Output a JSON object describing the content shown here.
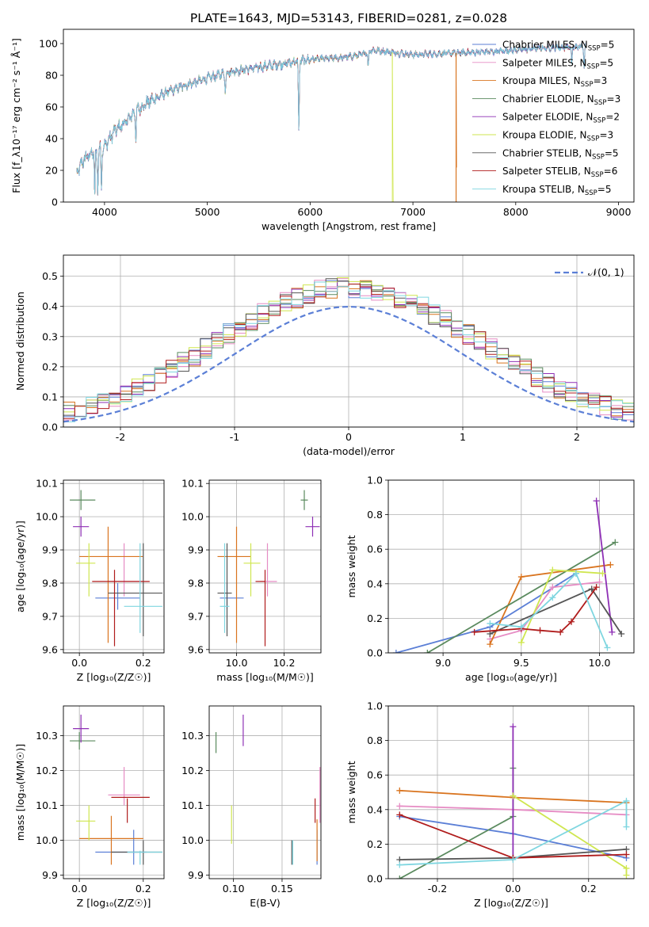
{
  "title": "PLATE=1643, MJD=53143, FIBERID=0281, z=0.028",
  "colors": [
    "#5b7fd6",
    "#e68cc4",
    "#d9741f",
    "#5a8a5e",
    "#8e2fb5",
    "#cfe64f",
    "#555555",
    "#b01c1c",
    "#7fd6e0"
  ],
  "chart_data": [
    {
      "type": "line",
      "name": "spectrum",
      "xlabel": "wavelength [Angstrom, rest frame]",
      "ylabel": "Flux [f_λ10⁻¹⁷ erg cm⁻² s⁻¹ Å⁻¹]",
      "xlim": [
        3600,
        9150
      ],
      "ylim": [
        0,
        109
      ],
      "xticks": [
        4000,
        5000,
        6000,
        7000,
        8000,
        9000
      ],
      "yticks": [
        0,
        20,
        40,
        60,
        80,
        100
      ],
      "grid": false,
      "legend_position": "top-right",
      "continuum": {
        "x": [
          3730,
          3800,
          3900,
          4000,
          4100,
          4200,
          4300,
          4400,
          4600,
          4800,
          5000,
          5200,
          5500,
          5800,
          6000,
          6300,
          6500,
          6600,
          7000,
          7400,
          7800,
          8200,
          8600,
          8680
        ],
        "y": [
          18,
          27,
          32,
          35,
          45,
          50,
          57,
          62,
          69,
          74,
          78,
          82,
          85,
          88,
          90,
          91,
          93,
          96,
          93,
          94,
          95,
          97,
          98,
          98
        ]
      },
      "absorption": [
        {
          "x": 3905,
          "depth": 30
        },
        {
          "x": 3935,
          "depth": 26
        },
        {
          "x": 3970,
          "depth": 24
        },
        {
          "x": 4305,
          "depth": 16
        },
        {
          "x": 5175,
          "depth": 12
        },
        {
          "x": 5890,
          "depth": 45
        },
        {
          "x": 6565,
          "depth": 10
        },
        {
          "x": 8545,
          "depth": 12
        },
        {
          "x": 8665,
          "depth": 12
        }
      ],
      "dropouts": [
        {
          "series": 5,
          "x": 6800
        },
        {
          "series": 2,
          "x": 7420
        }
      ],
      "series": [
        {
          "name": "Chabrier MILES, N",
          "n_ssp": "5"
        },
        {
          "name": "Salpeter MILES, N",
          "n_ssp": "5"
        },
        {
          "name": "Kroupa MILES, N",
          "n_ssp": "3"
        },
        {
          "name": "Chabrier ELODIE, N",
          "n_ssp": "3"
        },
        {
          "name": "Salpeter ELODIE, N",
          "n_ssp": "2"
        },
        {
          "name": "Kroupa ELODIE, N",
          "n_ssp": "3"
        },
        {
          "name": "Chabrier STELIB, N",
          "n_ssp": "5"
        },
        {
          "name": "Salpeter STELIB, N",
          "n_ssp": "6"
        },
        {
          "name": "Kroupa STELIB, N",
          "n_ssp": "5"
        }
      ],
      "legend_sub": "SSP",
      "legend_eq": "="
    },
    {
      "type": "bar",
      "name": "residuals",
      "xlabel": "(data-model)/error",
      "ylabel": "Normed distribution",
      "xlim": [
        -2.5,
        2.5
      ],
      "ylim": [
        0,
        0.57
      ],
      "xticks": [
        -2,
        -1,
        0,
        1,
        2
      ],
      "yticks": [
        0.0,
        0.1,
        0.2,
        0.3,
        0.4,
        0.5
      ],
      "grid": true,
      "bin_edges_start": -2.5,
      "bin_width": 0.1,
      "nbins": 50,
      "gaussian_label": "𝒩(0, 1)",
      "legend_position": "top-right"
    },
    {
      "type": "scatter",
      "name": "age-vs-Z",
      "xlabel": "Z [log₁₀(Z/Z☉)]",
      "ylabel": "age  [log₁₀(age/yr)]",
      "xlim": [
        -0.05,
        0.265
      ],
      "ylim": [
        9.59,
        10.11
      ],
      "xticks": [
        0.0,
        0.2
      ],
      "yticks": [
        9.6,
        9.7,
        9.8,
        9.9,
        10.0,
        10.1
      ],
      "grid": true,
      "points": [
        {
          "s": 0,
          "x": 0.12,
          "y": 9.755,
          "xl": 0.05,
          "xh": 0.19,
          "yl": 9.72,
          "yh": 9.8
        },
        {
          "s": 1,
          "x": 0.14,
          "y": 9.805,
          "xl": 0.09,
          "xh": 0.2,
          "yl": 9.76,
          "yh": 9.92
        },
        {
          "s": 2,
          "x": 0.09,
          "y": 9.88,
          "xl": 0.0,
          "xh": 0.2,
          "yl": 9.62,
          "yh": 9.97
        },
        {
          "s": 3,
          "x": 0.005,
          "y": 10.05,
          "xl": -0.03,
          "xh": 0.05,
          "yl": 10.02,
          "yh": 10.08
        },
        {
          "s": 4,
          "x": 0.005,
          "y": 9.97,
          "xl": -0.02,
          "xh": 0.03,
          "yl": 9.94,
          "yh": 10.0
        },
        {
          "s": 5,
          "x": 0.03,
          "y": 9.86,
          "xl": -0.01,
          "xh": 0.05,
          "yl": 9.76,
          "yh": 9.92
        },
        {
          "s": 6,
          "x": 0.2,
          "y": 9.77,
          "xl": 0.09,
          "xh": 0.26,
          "yl": 9.64,
          "yh": 9.92
        },
        {
          "s": 7,
          "x": 0.11,
          "y": 9.805,
          "xl": 0.04,
          "xh": 0.22,
          "yl": 9.61,
          "yh": 9.84
        },
        {
          "s": 8,
          "x": 0.19,
          "y": 9.73,
          "xl": 0.14,
          "xh": 0.26,
          "yl": 9.65,
          "yh": 9.92
        }
      ]
    },
    {
      "type": "scatter",
      "name": "age-vs-mass",
      "xlabel": "mass [log₁₀(M/M☉)]",
      "ylabel": "",
      "xlim": [
        9.885,
        10.355
      ],
      "ylim": [
        9.59,
        10.11
      ],
      "xticks": [
        10.0,
        10.2
      ],
      "yticks": [
        9.6,
        9.7,
        9.8,
        9.9,
        10.0,
        10.1
      ],
      "grid": true,
      "points": [
        {
          "s": 0,
          "x": 9.96,
          "y": 9.755,
          "xl": 9.93,
          "xh": 10.03,
          "yl": 9.72,
          "yh": 9.8
        },
        {
          "s": 1,
          "x": 10.13,
          "y": 9.805,
          "xl": 10.1,
          "xh": 10.17,
          "yl": 9.76,
          "yh": 9.92
        },
        {
          "s": 2,
          "x": 10.0,
          "y": 9.88,
          "xl": 9.92,
          "xh": 10.06,
          "yl": 9.62,
          "yh": 9.97
        },
        {
          "s": 3,
          "x": 10.285,
          "y": 10.05,
          "xl": 10.27,
          "xh": 10.3,
          "yl": 10.02,
          "yh": 10.08
        },
        {
          "s": 4,
          "x": 10.32,
          "y": 9.97,
          "xl": 10.29,
          "xh": 10.35,
          "yl": 9.94,
          "yh": 10.0
        },
        {
          "s": 5,
          "x": 10.06,
          "y": 9.86,
          "xl": 10.03,
          "xh": 10.1,
          "yl": 9.76,
          "yh": 9.92
        },
        {
          "s": 6,
          "x": 9.96,
          "y": 9.77,
          "xl": 9.92,
          "xh": 9.98,
          "yl": 9.64,
          "yh": 9.92
        },
        {
          "s": 7,
          "x": 10.12,
          "y": 9.805,
          "xl": 10.08,
          "xh": 10.12,
          "yl": 9.61,
          "yh": 9.84
        },
        {
          "s": 8,
          "x": 9.95,
          "y": 9.73,
          "xl": 9.93,
          "xh": 9.97,
          "yl": 9.65,
          "yh": 9.92
        }
      ]
    },
    {
      "type": "line",
      "name": "massweight-vs-age",
      "xlabel": "age  [log₁₀(age/yr)]",
      "ylabel": "mass weight",
      "xlim": [
        8.65,
        10.22
      ],
      "ylim": [
        0,
        1.0
      ],
      "xticks": [
        9.0,
        9.5,
        10.0
      ],
      "yticks": [
        0.0,
        0.2,
        0.4,
        0.6,
        0.8,
        1.0
      ],
      "grid": true,
      "series": [
        {
          "s": 0,
          "x": [
            8.7,
            9.3,
            9.85
          ],
          "y": [
            0.0,
            0.15,
            0.46
          ]
        },
        {
          "s": 1,
          "x": [
            9.3,
            9.5,
            9.7,
            10.0
          ],
          "y": [
            0.08,
            0.13,
            0.38,
            0.41
          ]
        },
        {
          "s": 2,
          "x": [
            9.3,
            9.5,
            10.07
          ],
          "y": [
            0.05,
            0.44,
            0.51
          ]
        },
        {
          "s": 3,
          "x": [
            8.9,
            10.1
          ],
          "y": [
            0.0,
            0.64
          ]
        },
        {
          "s": 4,
          "x": [
            9.98,
            10.08
          ],
          "y": [
            0.88,
            0.12
          ]
        },
        {
          "s": 5,
          "x": [
            9.5,
            9.7,
            10.02
          ],
          "y": [
            0.06,
            0.48,
            0.46
          ]
        },
        {
          "s": 6,
          "x": [
            9.3,
            9.95,
            10.14
          ],
          "y": [
            0.11,
            0.37,
            0.11
          ]
        },
        {
          "s": 7,
          "x": [
            9.2,
            9.5,
            9.62,
            9.75,
            9.82,
            9.98
          ],
          "y": [
            0.12,
            0.14,
            0.13,
            0.12,
            0.18,
            0.38
          ]
        },
        {
          "s": 8,
          "x": [
            9.3,
            9.5,
            9.7,
            9.85,
            10.05
          ],
          "y": [
            0.17,
            0.15,
            0.32,
            0.46,
            0.03
          ]
        }
      ]
    },
    {
      "type": "scatter",
      "name": "mass-vs-Z",
      "xlabel": "Z [log₁₀(Z/Z☉)]",
      "ylabel": "mass [log₁₀(M/M☉)]",
      "xlim": [
        -0.05,
        0.265
      ],
      "ylim": [
        9.89,
        10.385
      ],
      "xticks": [
        0.0,
        0.2
      ],
      "yticks": [
        9.9,
        10.0,
        10.1,
        10.2,
        10.3
      ],
      "grid": true,
      "points": [
        {
          "s": 0,
          "x": 0.17,
          "y": 9.966,
          "xl": 0.05,
          "xh": 0.21,
          "yl": 9.93,
          "yh": 10.03
        },
        {
          "s": 1,
          "x": 0.14,
          "y": 10.13,
          "xl": 0.09,
          "xh": 0.19,
          "yl": 10.1,
          "yh": 10.21
        },
        {
          "s": 2,
          "x": 0.1,
          "y": 10.005,
          "xl": 0.0,
          "xh": 0.2,
          "yl": 9.93,
          "yh": 10.07
        },
        {
          "s": 3,
          "x": 0.0,
          "y": 10.285,
          "xl": -0.03,
          "xh": 0.05,
          "yl": 10.26,
          "yh": 10.31
        },
        {
          "s": 4,
          "x": 0.005,
          "y": 10.32,
          "xl": -0.02,
          "xh": 0.03,
          "yl": 10.28,
          "yh": 10.36
        },
        {
          "s": 5,
          "x": 0.03,
          "y": 10.055,
          "xl": -0.01,
          "xh": 0.05,
          "yl": 10.0,
          "yh": 10.1
        },
        {
          "s": 6,
          "x": 0.2,
          "y": 9.966,
          "xl": 0.1,
          "xh": 0.26,
          "yl": 9.93,
          "yh": 10.0
        },
        {
          "s": 7,
          "x": 0.15,
          "y": 10.123,
          "xl": 0.1,
          "xh": 0.22,
          "yl": 10.05,
          "yh": 10.12
        },
        {
          "s": 8,
          "x": 0.19,
          "y": 9.966,
          "xl": 0.15,
          "xh": 0.26,
          "yl": 9.93,
          "yh": 9.97
        }
      ]
    },
    {
      "type": "scatter",
      "name": "mass-vs-EBV",
      "xlabel": "E(B-V)",
      "ylabel": "",
      "xlim": [
        0.075,
        0.19
      ],
      "ylim": [
        9.89,
        10.385
      ],
      "xticks": [
        0.1,
        0.15
      ],
      "yticks": [
        9.9,
        10.0,
        10.1,
        10.2,
        10.3
      ],
      "grid": true,
      "points": [
        {
          "s": 0,
          "x": 0.186,
          "y": 9.966,
          "yl": 9.93,
          "yh": 10.03
        },
        {
          "s": 1,
          "x": 0.189,
          "y": 10.13,
          "yl": 10.05,
          "yh": 10.21
        },
        {
          "s": 2,
          "x": 0.186,
          "y": 10.0,
          "yl": 9.94,
          "yh": 10.06
        },
        {
          "s": 3,
          "x": 0.082,
          "y": 10.285,
          "yl": 10.25,
          "yh": 10.31
        },
        {
          "s": 4,
          "x": 0.11,
          "y": 10.32,
          "yl": 10.27,
          "yh": 10.36
        },
        {
          "s": 5,
          "x": 0.098,
          "y": 10.055,
          "yl": 9.99,
          "yh": 10.1
        },
        {
          "s": 6,
          "x": 0.16,
          "y": 9.966,
          "yl": 9.93,
          "yh": 10.0
        },
        {
          "s": 7,
          "x": 0.184,
          "y": 10.085,
          "yl": 10.05,
          "yh": 10.12
        },
        {
          "s": 8,
          "x": 0.161,
          "y": 9.966,
          "yl": 9.93,
          "yh": 10.0
        }
      ]
    },
    {
      "type": "line",
      "name": "massweight-vs-Z",
      "xlabel": "Z [log₁₀(Z/Z☉)]",
      "ylabel": "mass weight",
      "xlim": [
        -0.33,
        0.32
      ],
      "ylim": [
        0,
        1.0
      ],
      "xticks": [
        -0.2,
        0.0,
        0.2
      ],
      "yticks": [
        0.0,
        0.2,
        0.4,
        0.6,
        0.8,
        1.0
      ],
      "grid": true,
      "series": [
        {
          "s": 0,
          "x": [
            -0.3,
            0.0,
            0.3
          ],
          "y": [
            0.36,
            0.26,
            0.12
          ]
        },
        {
          "s": 1,
          "x": [
            -0.3,
            0.0,
            0.3
          ],
          "y": [
            0.42,
            0.4,
            0.37
          ]
        },
        {
          "s": 2,
          "x": [
            -0.3,
            0.0,
            0.3
          ],
          "y": [
            0.51,
            0.47,
            0.44
          ]
        },
        {
          "s": 3,
          "x": [
            -0.3,
            0.0,
            0.0
          ],
          "y": [
            0.0,
            0.36,
            0.64
          ]
        },
        {
          "s": 4,
          "x": [
            0.0,
            0.0
          ],
          "y": [
            0.12,
            0.88
          ]
        },
        {
          "s": 5,
          "x": [
            0.0,
            0.3,
            0.3
          ],
          "y": [
            0.48,
            0.06,
            0.02
          ]
        },
        {
          "s": 6,
          "x": [
            -0.3,
            0.0,
            0.3
          ],
          "y": [
            0.11,
            0.12,
            0.17
          ]
        },
        {
          "s": 7,
          "x": [
            -0.3,
            0.0,
            0.3
          ],
          "y": [
            0.37,
            0.12,
            0.14
          ]
        },
        {
          "s": 8,
          "x": [
            -0.3,
            0.0,
            0.3,
            0.3
          ],
          "y": [
            0.08,
            0.11,
            0.45,
            0.3
          ]
        }
      ]
    }
  ]
}
